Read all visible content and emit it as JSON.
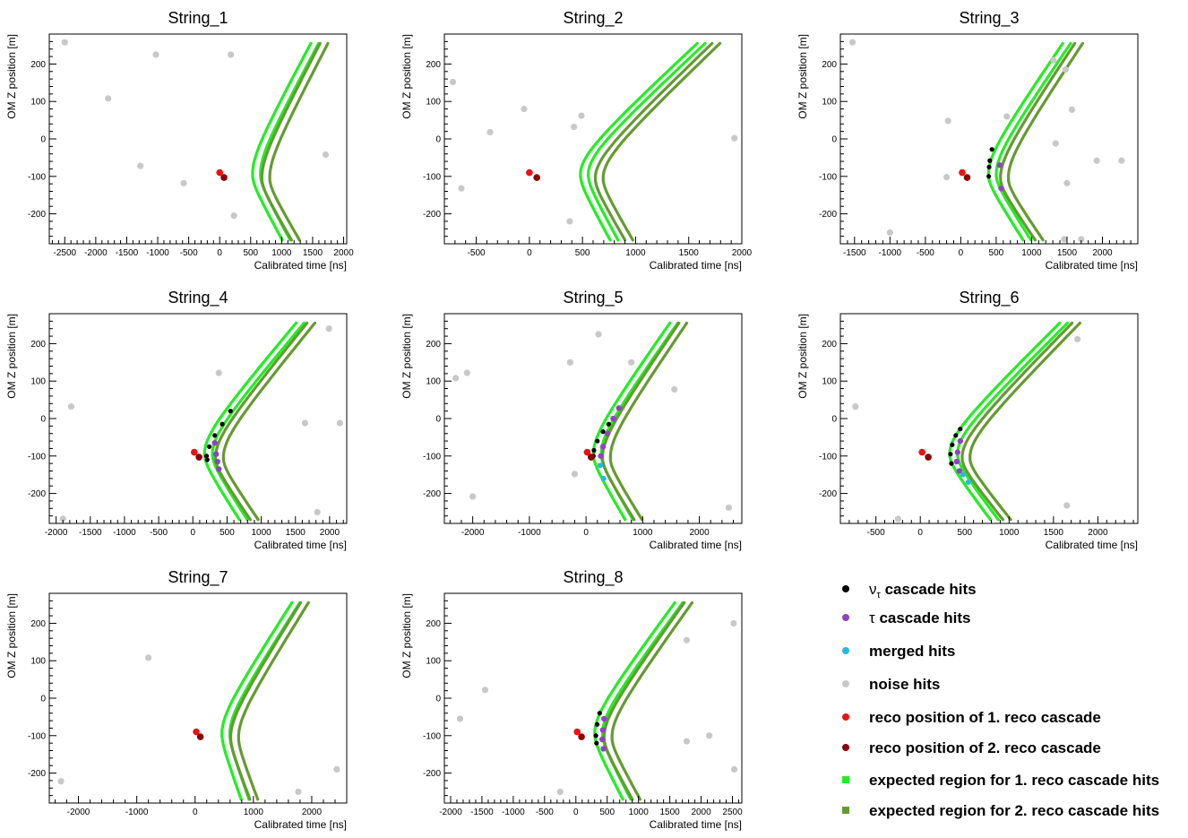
{
  "colors": {
    "nu_hits": "#000000",
    "tau_hits": "#8e44c2",
    "merged_hits": "#29b5e6",
    "noise_hits": "#c8c8c8",
    "reco1": "#ee1111",
    "reco2": "#8b0000",
    "band1": "#22ee22",
    "band2": "#669933"
  },
  "legend": [
    {
      "key": "nu_hits",
      "symbol": "ν",
      "sub": "τ",
      "label": " cascade hits",
      "marker": "circle"
    },
    {
      "key": "tau_hits",
      "symbol": "τ",
      "sub": "",
      "label": " cascade hits",
      "marker": "circle"
    },
    {
      "key": "merged_hits",
      "symbol": "",
      "sub": "",
      "label": "merged hits",
      "marker": "circle"
    },
    {
      "key": "noise_hits",
      "symbol": "",
      "sub": "",
      "label": "noise hits",
      "marker": "circle"
    },
    {
      "key": "reco1",
      "symbol": "",
      "sub": "",
      "label": "reco position of 1. reco cascade",
      "marker": "circle"
    },
    {
      "key": "reco2",
      "symbol": "",
      "sub": "",
      "label": "reco position of 2. reco cascade",
      "marker": "circle"
    },
    {
      "key": "band1",
      "symbol": "",
      "sub": "",
      "label": "expected region for 1. reco cascade hits",
      "marker": "square"
    },
    {
      "key": "band2",
      "symbol": "",
      "sub": "",
      "label": "expected region for 2. reco cascade hits",
      "marker": "square"
    }
  ],
  "chart_data": [
    {
      "type": "scatter",
      "title": "String_1",
      "xlabel": "Calibrated time [ns]",
      "ylabel": "OM Z position [m]",
      "xlim": [
        -2750,
        2050
      ],
      "ylim": [
        -280,
        280
      ],
      "xticks": [
        -2500,
        -2000,
        -1500,
        -1000,
        -500,
        0,
        500,
        1000,
        1500,
        2000
      ],
      "yticks": [
        -200,
        -100,
        0,
        100,
        200
      ],
      "vertex1": {
        "t": 530,
        "z": -95
      },
      "vertex2": {
        "t": 680,
        "z": -105
      },
      "top": {
        "z": 255,
        "dt": 940
      },
      "bottom": {
        "z": -270,
        "dt": 480
      },
      "noise": [
        [
          -2500,
          258
        ],
        [
          -1800,
          108
        ],
        [
          -1030,
          225
        ],
        [
          -1280,
          -72
        ],
        [
          -580,
          -118
        ],
        [
          180,
          225
        ],
        [
          230,
          -205
        ],
        [
          1710,
          -42
        ]
      ],
      "nu": [],
      "tau": [],
      "merged": [],
      "reco1": [
        0,
        -90
      ],
      "reco2": [
        70,
        -103
      ]
    },
    {
      "type": "scatter",
      "title": "String_2",
      "xlabel": "Calibrated time [ns]",
      "ylabel": "OM Z position [m]",
      "xlim": [
        -800,
        2000
      ],
      "ylim": [
        -280,
        280
      ],
      "xticks": [
        -500,
        0,
        500,
        1000,
        1500,
        2000
      ],
      "yticks": [
        -200,
        -100,
        0,
        100,
        200
      ],
      "vertex1": {
        "t": 480,
        "z": -95
      },
      "vertex2": {
        "t": 620,
        "z": -105
      },
      "top": {
        "z": 255,
        "dt": 1100
      },
      "bottom": {
        "z": -270,
        "dt": 280
      },
      "noise": [
        [
          -720,
          152
        ],
        [
          -640,
          -132
        ],
        [
          -370,
          18
        ],
        [
          -50,
          80
        ],
        [
          420,
          32
        ],
        [
          490,
          62
        ],
        [
          380,
          -220
        ],
        [
          1930,
          2
        ]
      ],
      "nu": [],
      "tau": [],
      "merged": [],
      "reco1": [
        0,
        -90
      ],
      "reco2": [
        70,
        -103
      ]
    },
    {
      "type": "scatter",
      "title": "String_3",
      "xlabel": "Calibrated time [ns]",
      "ylabel": "OM Z position [m]",
      "xlim": [
        -1700,
        2500
      ],
      "ylim": [
        -280,
        280
      ],
      "xticks": [
        -1500,
        -1000,
        -500,
        0,
        500,
        1000,
        1500,
        2000
      ],
      "yticks": [
        -200,
        -100,
        0,
        100,
        200
      ],
      "vertex1": {
        "t": 390,
        "z": -95
      },
      "vertex2": {
        "t": 560,
        "z": -105
      },
      "top": {
        "z": 255,
        "dt": 1050
      },
      "bottom": {
        "z": -270,
        "dt": 490
      },
      "noise": [
        [
          -1530,
          258
        ],
        [
          -1000,
          -250
        ],
        [
          -180,
          48
        ],
        [
          -200,
          -102
        ],
        [
          650,
          60
        ],
        [
          1310,
          210
        ],
        [
          1480,
          185
        ],
        [
          1570,
          78
        ],
        [
          1340,
          -12
        ],
        [
          1500,
          -118
        ],
        [
          1920,
          -58
        ],
        [
          2270,
          -58
        ],
        [
          1460,
          -268
        ],
        [
          1700,
          -268
        ]
      ],
      "nu": [
        [
          440,
          -28
        ],
        [
          410,
          -58
        ],
        [
          400,
          -75
        ],
        [
          395,
          -100
        ]
      ],
      "tau": [
        [
          550,
          -70
        ],
        [
          570,
          -132
        ]
      ],
      "merged": [],
      "reco1": [
        20,
        -90
      ],
      "reco2": [
        90,
        -103
      ]
    },
    {
      "type": "scatter",
      "title": "String_4",
      "xlabel": "Calibrated time [ns]",
      "ylabel": "OM Z position [m]",
      "xlim": [
        -2100,
        2250
      ],
      "ylim": [
        -280,
        280
      ],
      "xticks": [
        -2000,
        -1500,
        -1000,
        -500,
        0,
        500,
        1000,
        1500,
        2000
      ],
      "yticks": [
        -200,
        -100,
        0,
        100,
        200
      ],
      "vertex1": {
        "t": 170,
        "z": -95
      },
      "vertex2": {
        "t": 330,
        "z": -105
      },
      "top": {
        "z": 255,
        "dt": 1340
      },
      "bottom": {
        "z": -270,
        "dt": 510
      },
      "noise": [
        [
          -1780,
          32
        ],
        [
          380,
          122
        ],
        [
          1990,
          240
        ],
        [
          1640,
          -12
        ],
        [
          2150,
          -12
        ],
        [
          1820,
          -250
        ],
        [
          -1900,
          -268
        ]
      ],
      "nu": [
        [
          550,
          20
        ],
        [
          430,
          -15
        ],
        [
          320,
          -45
        ],
        [
          240,
          -75
        ],
        [
          200,
          -100
        ],
        [
          210,
          -110
        ]
      ],
      "tau": [
        [
          320,
          -65
        ],
        [
          340,
          -95
        ],
        [
          360,
          -115
        ],
        [
          380,
          -135
        ]
      ],
      "merged": [],
      "reco1": [
        20,
        -90
      ],
      "reco2": [
        90,
        -103
      ]
    },
    {
      "type": "scatter",
      "title": "String_5",
      "xlabel": "Calibrated time [ns]",
      "ylabel": "OM Z position [m]",
      "xlim": [
        -2500,
        2750
      ],
      "ylim": [
        -280,
        280
      ],
      "xticks": [
        -2000,
        -1000,
        0,
        1000,
        2000
      ],
      "yticks": [
        -200,
        -100,
        0,
        100,
        200
      ],
      "vertex1": {
        "t": 130,
        "z": -95
      },
      "vertex2": {
        "t": 290,
        "z": -105
      },
      "top": {
        "z": 255,
        "dt": 1350
      },
      "bottom": {
        "z": -270,
        "dt": 560
      },
      "noise": [
        [
          -2300,
          108
        ],
        [
          -2100,
          122
        ],
        [
          -280,
          150
        ],
        [
          220,
          225
        ],
        [
          800,
          150
        ],
        [
          1560,
          78
        ],
        [
          -200,
          -148
        ],
        [
          -2000,
          -208
        ],
        [
          2520,
          -238
        ]
      ],
      "nu": [
        [
          400,
          -15
        ],
        [
          300,
          -35
        ],
        [
          200,
          -60
        ],
        [
          140,
          -85
        ],
        [
          130,
          -100
        ]
      ],
      "tau": [
        [
          580,
          28
        ],
        [
          480,
          0
        ],
        [
          380,
          -40
        ],
        [
          300,
          -75
        ],
        [
          260,
          -100
        ]
      ],
      "merged": [
        [
          250,
          -125
        ],
        [
          310,
          -160
        ]
      ],
      "reco1": [
        20,
        -90
      ],
      "reco2": [
        90,
        -103
      ]
    },
    {
      "type": "scatter",
      "title": "String_6",
      "xlabel": "Calibrated time [ns]",
      "ylabel": "OM Z position [m]",
      "xlim": [
        -900,
        2450
      ],
      "ylim": [
        -280,
        280
      ],
      "xticks": [
        -500,
        0,
        500,
        1000,
        1500,
        2000
      ],
      "yticks": [
        -200,
        -100,
        0,
        100,
        200
      ],
      "vertex1": {
        "t": 330,
        "z": -95
      },
      "vertex2": {
        "t": 470,
        "z": -105
      },
      "top": {
        "z": 255,
        "dt": 1240
      },
      "bottom": {
        "z": -270,
        "dt": 460
      },
      "noise": [
        [
          -730,
          32
        ],
        [
          1770,
          212
        ],
        [
          -250,
          -268
        ],
        [
          1650,
          -232
        ]
      ],
      "nu": [
        [
          450,
          -28
        ],
        [
          400,
          -45
        ],
        [
          360,
          -70
        ],
        [
          340,
          -95
        ],
        [
          350,
          -120
        ]
      ],
      "tau": [
        [
          450,
          -60
        ],
        [
          420,
          -90
        ],
        [
          410,
          -115
        ],
        [
          440,
          -140
        ]
      ],
      "merged": [
        [
          480,
          -150
        ],
        [
          540,
          -170
        ]
      ],
      "reco1": [
        20,
        -90
      ],
      "reco2": [
        90,
        -103
      ]
    },
    {
      "type": "scatter",
      "title": "String_7",
      "xlabel": "Calibrated time [ns]",
      "ylabel": "OM Z position [m]",
      "xlim": [
        -2500,
        2600
      ],
      "ylim": [
        -280,
        280
      ],
      "xticks": [
        -2000,
        -1000,
        0,
        1000,
        2000
      ],
      "yticks": [
        -200,
        -100,
        0,
        100,
        200
      ],
      "vertex1": {
        "t": 460,
        "z": -95
      },
      "vertex2": {
        "t": 610,
        "z": -105
      },
      "top": {
        "z": 255,
        "dt": 1200
      },
      "bottom": {
        "z": -270,
        "dt": 330
      },
      "noise": [
        [
          -800,
          108
        ],
        [
          -2300,
          -222
        ],
        [
          1770,
          -250
        ],
        [
          2430,
          -190
        ]
      ],
      "nu": [],
      "tau": [],
      "merged": [],
      "reco1": [
        20,
        -90
      ],
      "reco2": [
        90,
        -103
      ]
    },
    {
      "type": "scatter",
      "title": "String_8",
      "xlabel": "Calibrated time [ns]",
      "ylabel": "OM Z position [m]",
      "xlim": [
        -2100,
        2650
      ],
      "ylim": [
        -280,
        280
      ],
      "xticks": [
        -2000,
        -1500,
        -1000,
        -500,
        0,
        500,
        1000,
        1500,
        2000,
        2500
      ],
      "yticks": [
        -200,
        -100,
        0,
        100,
        200
      ],
      "vertex1": {
        "t": 300,
        "z": -95
      },
      "vertex2": {
        "t": 450,
        "z": -105
      },
      "top": {
        "z": 255,
        "dt": 1280
      },
      "bottom": {
        "z": -270,
        "dt": 450
      },
      "noise": [
        [
          -1850,
          -55
        ],
        [
          -1450,
          22
        ],
        [
          -250,
          -250
        ],
        [
          1770,
          155
        ],
        [
          2520,
          200
        ],
        [
          1770,
          -115
        ],
        [
          2130,
          -100
        ],
        [
          2530,
          -190
        ]
      ],
      "nu": [
        [
          380,
          -40
        ],
        [
          340,
          -70
        ],
        [
          320,
          -100
        ],
        [
          330,
          -120
        ]
      ],
      "tau": [
        [
          450,
          -55
        ],
        [
          430,
          -85
        ],
        [
          420,
          -110
        ],
        [
          440,
          -135
        ]
      ],
      "merged": [],
      "reco1": [
        20,
        -90
      ],
      "reco2": [
        90,
        -103
      ]
    }
  ]
}
